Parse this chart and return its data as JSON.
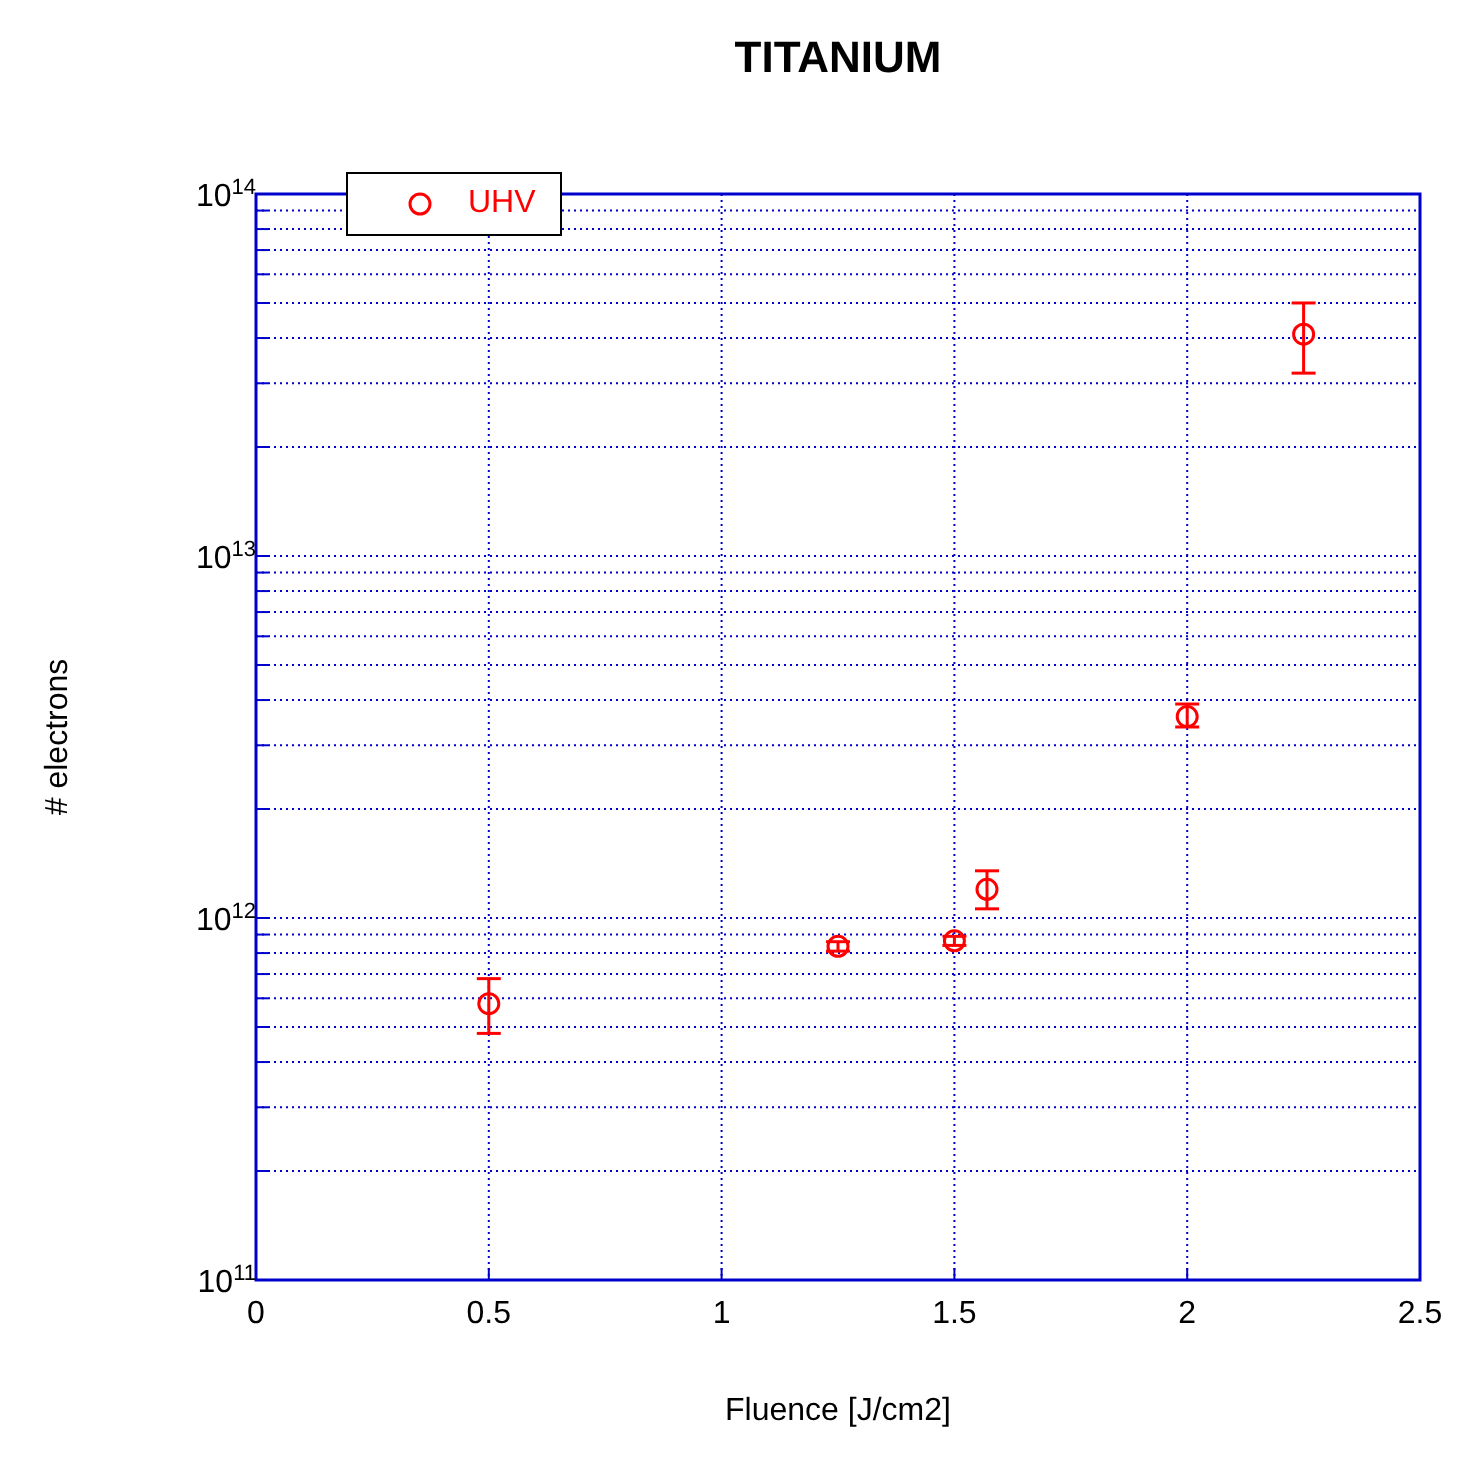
{
  "chart_data": {
    "type": "scatter",
    "title": "TITANIUM",
    "xlabel": "Fluence [J/cm2]",
    "ylabel": "# electrons",
    "x": [
      0.5,
      1.25,
      1.5,
      1.57,
      2.0,
      2.25
    ],
    "series": [
      {
        "name": "UHV",
        "color": "#ff0000",
        "values": [
          580000000000.0,
          835000000000.0,
          865000000000.0,
          1200000000000.0,
          3600000000000.0,
          41000000000000.0
        ],
        "errors": [
          [
            480000000000.0,
            680000000000.0
          ],
          [
            810000000000.0,
            860000000000.0
          ],
          [
            840000000000.0,
            890000000000.0
          ],
          [
            1060000000000.0,
            1350000000000.0
          ],
          [
            3370000000000.0,
            3900000000000.0
          ],
          [
            32000000000000.0,
            50000000000000.0
          ]
        ]
      }
    ],
    "xlim": [
      0,
      2.5
    ],
    "xticks": [
      0,
      0.5,
      1,
      1.5,
      2,
      2.5
    ],
    "ylim": [
      100000000000.0,
      100000000000000.0
    ],
    "yticks": [
      {
        "value": 100000000000.0,
        "label": "10$^{11}$"
      },
      {
        "value": 200000000000.0,
        "label": null
      },
      {
        "value": 300000000000.0,
        "label": null
      },
      {
        "value": 400000000000.0,
        "label": null
      },
      {
        "value": 500000000000.0,
        "label": null
      },
      {
        "value": 600000000000.0,
        "label": null
      },
      {
        "value": 700000000000.0,
        "label": null
      },
      {
        "value": 800000000000.0,
        "label": null
      },
      {
        "value": 900000000000.0,
        "label": null
      },
      {
        "value": 1000000000000.0,
        "label": "10$^{12}$"
      },
      {
        "value": 2000000000000.0,
        "label": null
      },
      {
        "value": 3000000000000.0,
        "label": null
      },
      {
        "value": 4000000000000.0,
        "label": null
      },
      {
        "value": 5000000000000.0,
        "label": null
      },
      {
        "value": 6000000000000.0,
        "label": null
      },
      {
        "value": 7000000000000.0,
        "label": null
      },
      {
        "value": 8000000000000.0,
        "label": null
      },
      {
        "value": 9000000000000.0,
        "label": null
      },
      {
        "value": 10000000000000.0,
        "label": "10$^{13}$"
      },
      {
        "value": 20000000000000.0,
        "label": null
      },
      {
        "value": 30000000000000.0,
        "label": null
      },
      {
        "value": 40000000000000.0,
        "label": null
      },
      {
        "value": 50000000000000.0,
        "label": null
      },
      {
        "value": 60000000000000.0,
        "label": null
      },
      {
        "value": 70000000000000.0,
        "label": null
      },
      {
        "value": 80000000000000.0,
        "label": null
      },
      {
        "value": 90000000000000.0,
        "label": null
      },
      {
        "value": 100000000000000.0,
        "label": "10$^{14}$"
      }
    ],
    "log": "y",
    "grid": true,
    "legend": "top left",
    "marker": "circle"
  }
}
